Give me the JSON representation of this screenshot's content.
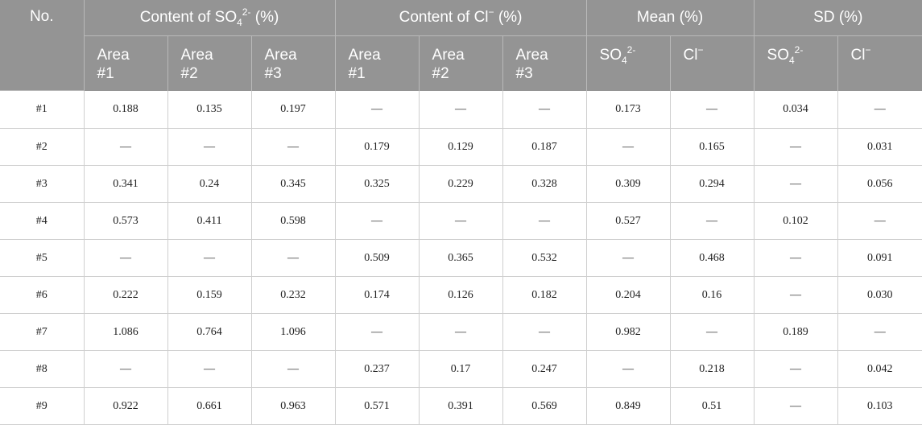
{
  "header": {
    "no": "No.",
    "so4_group": "Content of SO",
    "so4_sub": "4",
    "so4_sup": "2-",
    "so4_tail": " (%)",
    "cl_group": "Content of Cl",
    "cl_sup": "−",
    "cl_tail": " (%)",
    "mean": "Mean (%)",
    "sd": "SD (%)",
    "area1_a": "Area",
    "area1_b": "#1",
    "area2_a": "Area",
    "area2_b": "#2",
    "area3_a": "Area",
    "area3_b": "#3",
    "so4_short": "SO",
    "cl_short": "Cl"
  },
  "rows": [
    [
      "#1",
      "0.188",
      "0.135",
      "0.197",
      "—",
      "—",
      "—",
      "0.173",
      "—",
      "0.034",
      "—"
    ],
    [
      "#2",
      "—",
      "—",
      "—",
      "0.179",
      "0.129",
      "0.187",
      "—",
      "0.165",
      "—",
      "0.031"
    ],
    [
      "#3",
      "0.341",
      "0.24",
      "0.345",
      "0.325",
      "0.229",
      "0.328",
      "0.309",
      "0.294",
      "—",
      "0.056"
    ],
    [
      "#4",
      "0.573",
      "0.411",
      "0.598",
      "—",
      "—",
      "—",
      "0.527",
      "—",
      "0.102",
      "—"
    ],
    [
      "#5",
      "—",
      "—",
      "—",
      "0.509",
      "0.365",
      "0.532",
      "—",
      "0.468",
      "—",
      "0.091"
    ],
    [
      "#6",
      "0.222",
      "0.159",
      "0.232",
      "0.174",
      "0.126",
      "0.182",
      "0.204",
      "0.16",
      "—",
      "0.030"
    ],
    [
      "#7",
      "1.086",
      "0.764",
      "1.096",
      "—",
      "—",
      "—",
      "0.982",
      "—",
      "0.189",
      "—"
    ],
    [
      "#8",
      "—",
      "—",
      "—",
      "0.237",
      "0.17",
      "0.247",
      "—",
      "0.218",
      "—",
      "0.042"
    ],
    [
      "#9",
      "0.922",
      "0.661",
      "0.963",
      "0.571",
      "0.391",
      "0.569",
      "0.849",
      "0.51",
      "—",
      "0.103"
    ]
  ]
}
